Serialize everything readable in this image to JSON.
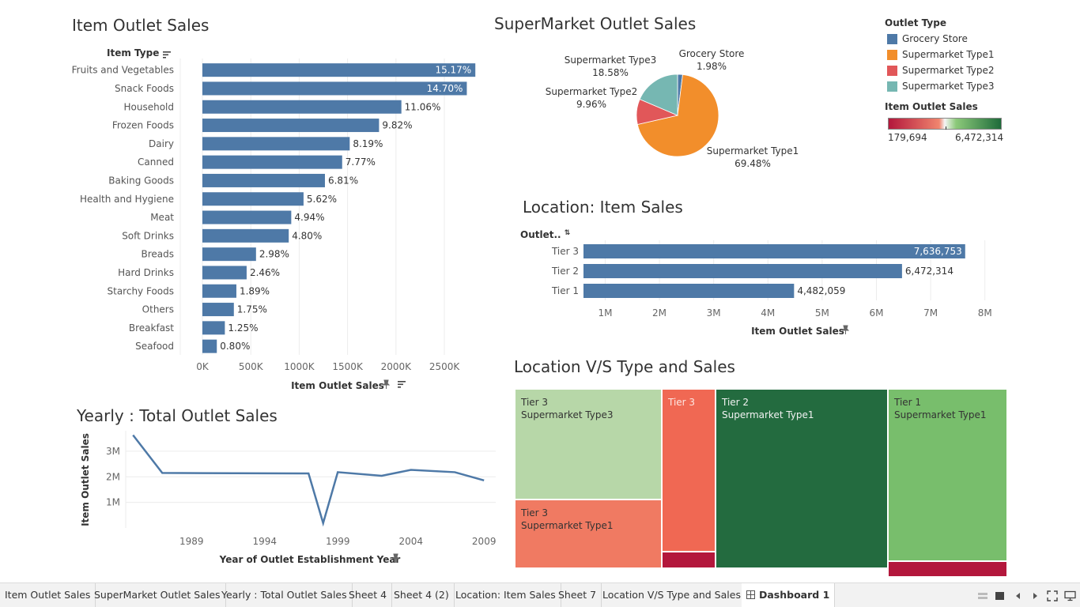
{
  "charts_meta": {
    "item_title": "Item Outlet Sales",
    "super_title": "SuperMarket Outlet Sales",
    "location_title": "Location: Item Sales",
    "treemap_title": "Location V/S Type and Sales",
    "yearly_title": "Yearly : Total Outlet Sales"
  },
  "chart_data": [
    {
      "type": "bar",
      "title": "Item Outlet Sales",
      "ylabel": "Item Type",
      "xlabel": "Item Outlet Sales",
      "categories": [
        "Fruits and Vegetables",
        "Snack Foods",
        "Household",
        "Frozen Foods",
        "Dairy",
        "Canned",
        "Baking Goods",
        "Health and Hygiene",
        "Meat",
        "Soft Drinks",
        "Breads",
        "Hard Drinks",
        "Starchy Foods",
        "Others",
        "Breakfast",
        "Seafood"
      ],
      "values": [
        2820000,
        2732000,
        2056000,
        1825000,
        1522000,
        1444000,
        1266000,
        1045000,
        918000,
        892000,
        554000,
        457000,
        351000,
        325000,
        232000,
        149000
      ],
      "data_labels": [
        "15.17%",
        "14.70%",
        "11.06%",
        "9.82%",
        "8.19%",
        "7.77%",
        "6.81%",
        "5.62%",
        "4.94%",
        "4.80%",
        "2.98%",
        "2.46%",
        "1.89%",
        "1.75%",
        "1.25%",
        "0.80%"
      ],
      "xticks": [
        "0K",
        "500K",
        "1000K",
        "1500K",
        "2000K",
        "2500K"
      ],
      "xlim": [
        0,
        2900000
      ],
      "grid": true
    },
    {
      "type": "pie",
      "title": "SuperMarket Outlet Sales",
      "slices": [
        {
          "name": "Grocery Store",
          "percent": "1.98%",
          "value": 1.98,
          "color": "#4e79a7"
        },
        {
          "name": "Supermarket Type1",
          "percent": "69.48%",
          "value": 69.48,
          "color": "#f28e2b"
        },
        {
          "name": "Supermarket Type2",
          "percent": "9.96%",
          "value": 9.96,
          "color": "#e15759"
        },
        {
          "name": "Supermarket Type3",
          "percent": "18.58%",
          "value": 18.58,
          "color": "#76b7b2"
        }
      ],
      "legend_title": "Outlet Type",
      "legend_placement": "right"
    },
    {
      "type": "bar",
      "title": "Location: Item Sales",
      "ylabel": "Outlet..",
      "xlabel": "Item Outlet Sales",
      "categories": [
        "Tier 3",
        "Tier 2",
        "Tier 1"
      ],
      "values": [
        7636753,
        6472314,
        4482059
      ],
      "data_labels": [
        "7,636,753",
        "6,472,314",
        "4,482,059"
      ],
      "xticks": [
        "1M",
        "2M",
        "3M",
        "4M",
        "5M",
        "6M",
        "7M",
        "8M"
      ],
      "xlim": [
        600000,
        8500000
      ],
      "grid": true
    },
    {
      "type": "heatmap",
      "title": "Location V/S Type and Sales",
      "color_legend": {
        "title": "Item Outlet Sales",
        "min": "179,694",
        "max": "6,472,314",
        "colors": [
          "#b3173c",
          "#f0856e",
          "#f5f5f5",
          "#8cc97a",
          "#1e6b3a"
        ]
      },
      "cells": [
        {
          "tier": "Tier 3",
          "type": "Supermarket Type3",
          "value": 3453926,
          "color": "#b7d7a8"
        },
        {
          "tier": "Tier 3",
          "type": "Supermarket Type1",
          "value": 2500000,
          "color": "#f07a62"
        },
        {
          "tier": "Tier 3",
          "type": "",
          "value": 1500000,
          "color": "#f06853"
        },
        {
          "tier": "Tier 3",
          "type": "",
          "value": 188340,
          "color": "#b3173c"
        },
        {
          "tier": "Tier 2",
          "type": "Supermarket Type1",
          "value": 6472314,
          "color": "#236b3f"
        },
        {
          "tier": "Tier 1",
          "type": "Supermarket Type1",
          "value": 4300000,
          "color": "#78be6c"
        },
        {
          "tier": "Tier 1",
          "type": "",
          "value": 179694,
          "color": "#b3173c"
        }
      ]
    },
    {
      "type": "line",
      "title": "Yearly : Total Outlet Sales",
      "xlabel": "Year of Outlet Establishment Year",
      "ylabel": "Item Outlet Sales",
      "x": [
        1985,
        1987,
        1997,
        1998,
        1999,
        2002,
        2004,
        2007,
        2009
      ],
      "y": [
        3630000,
        2150000,
        2130000,
        190000,
        2180000,
        2040000,
        2270000,
        2180000,
        1860000
      ],
      "xticks": [
        "1989",
        "1994",
        "1999",
        "2004",
        "2009"
      ],
      "yticks": [
        "1M",
        "2M",
        "3M"
      ],
      "xlim": [
        1984.5,
        2009.8
      ],
      "ylim": [
        0,
        3800000
      ],
      "grid": true
    }
  ],
  "tabs": [
    {
      "label": "Item Outlet Sales"
    },
    {
      "label": "SuperMarket Outlet Sales"
    },
    {
      "label": "Yearly : Total Outlet Sales"
    },
    {
      "label": "Sheet 4"
    },
    {
      "label": "Sheet 4 (2)"
    },
    {
      "label": "Location: Item Sales"
    },
    {
      "label": "Sheet 7"
    },
    {
      "label": "Location V/S Type and Sales"
    },
    {
      "label": "Dashboard 1",
      "icon": "dashboard-icon",
      "active": true
    }
  ],
  "nav_icons": [
    "grid-view-icon",
    "filmstrip-icon",
    "prev-sheet-icon",
    "next-sheet-icon",
    "fullscreen-icon",
    "presentation-icon"
  ]
}
